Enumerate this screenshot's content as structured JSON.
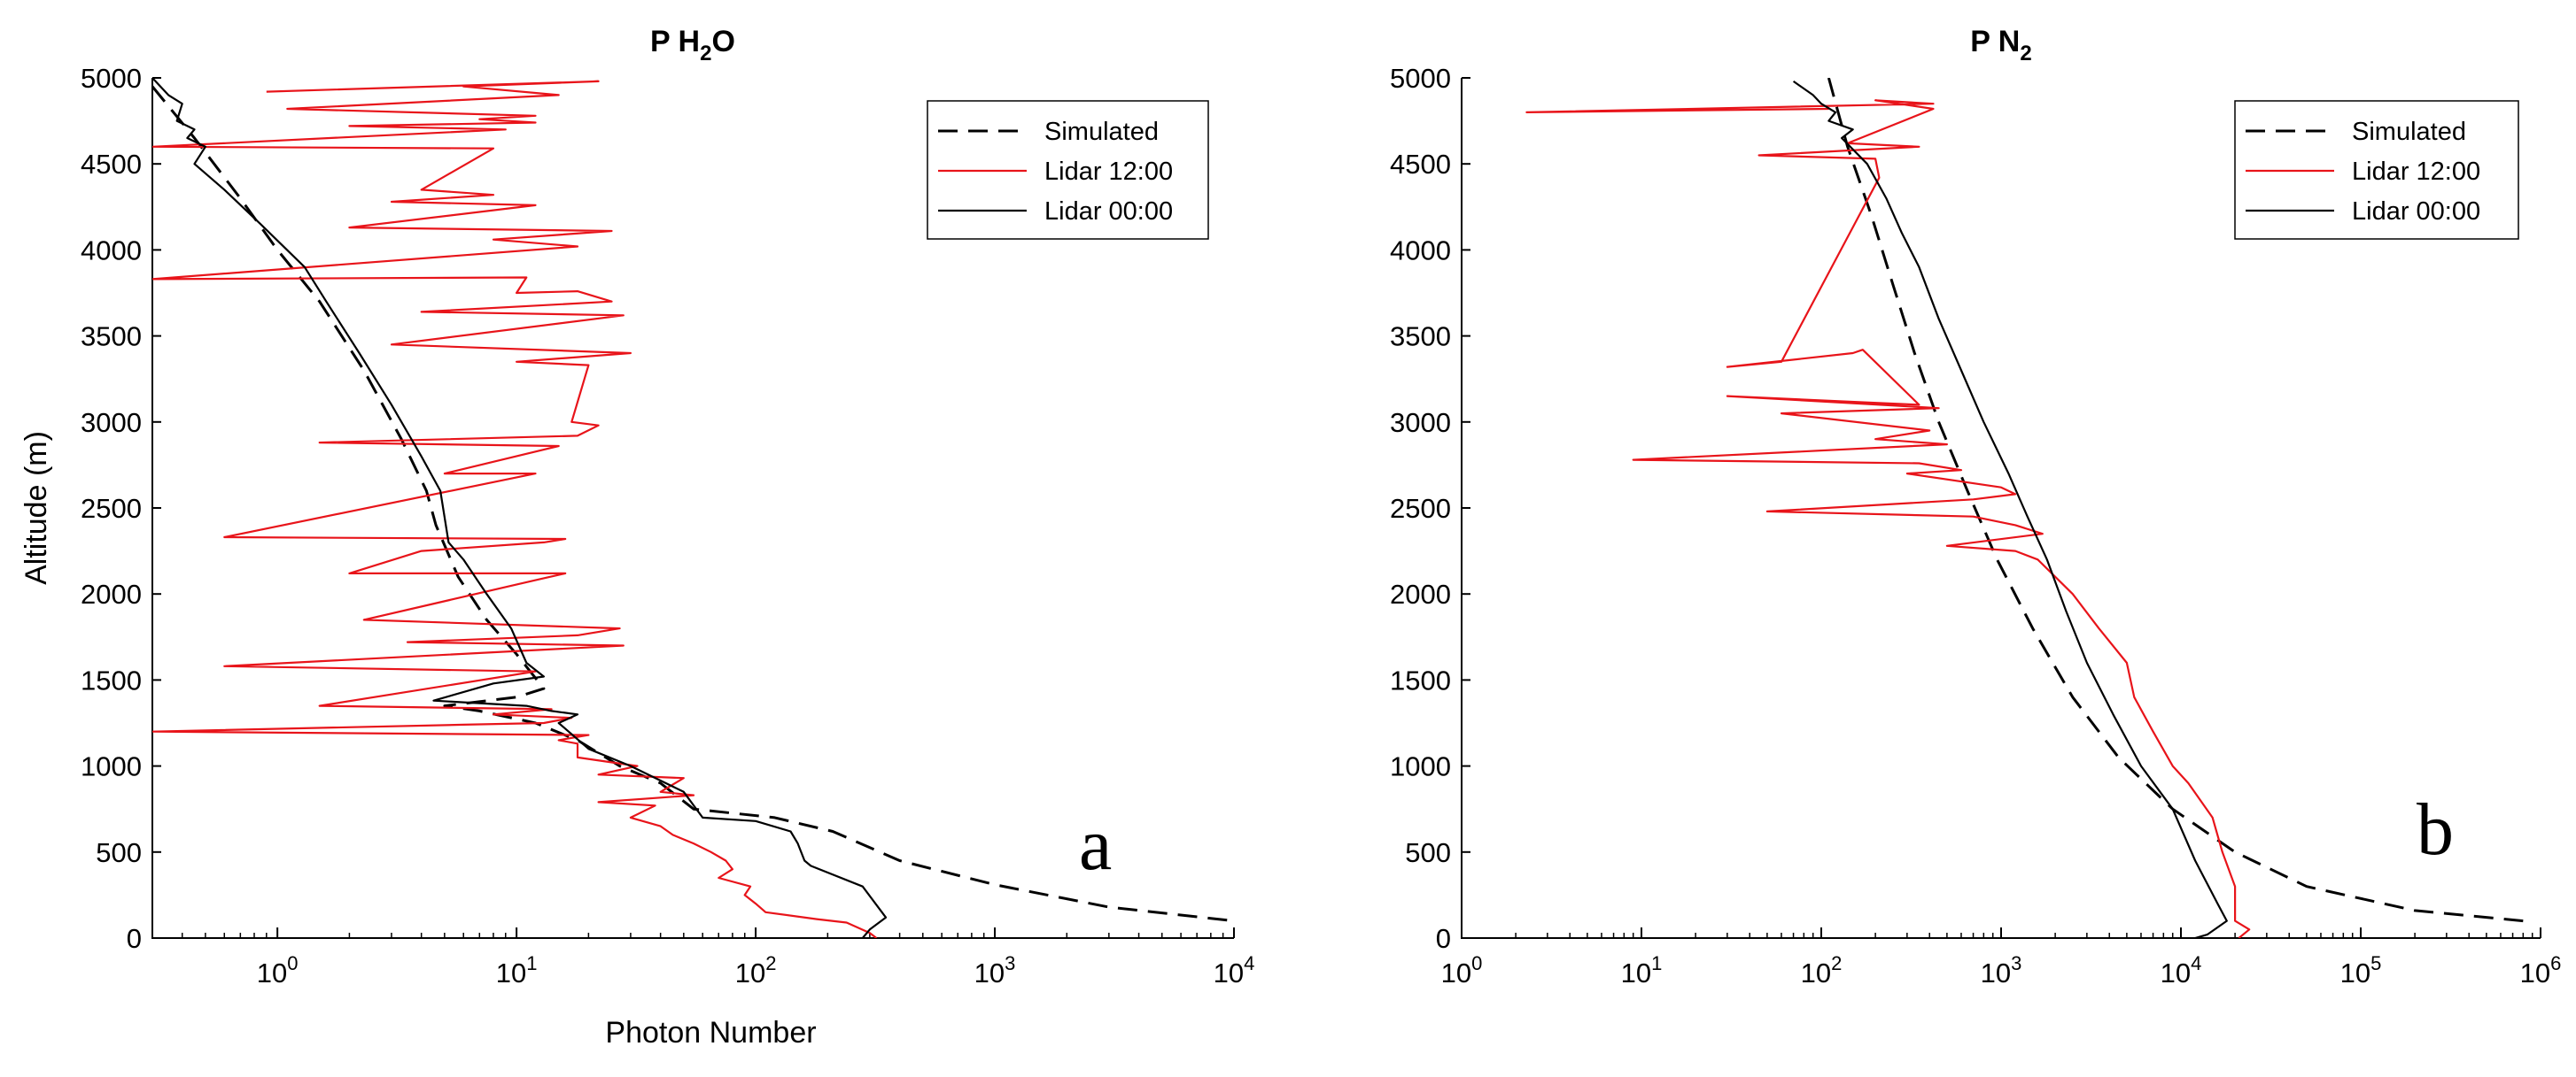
{
  "chart_data": [
    {
      "type": "line",
      "title": "P H2O",
      "title_parts": [
        "P H",
        "2",
        "O"
      ],
      "xlabel": "Photon Number",
      "ylabel": "Altitude (m)",
      "x_scale": "log",
      "xlim": [
        0.3,
        10000
      ],
      "ylim": [
        0,
        5000
      ],
      "x_ticks": [
        1,
        10,
        100,
        1000,
        10000
      ],
      "x_tick_base": "10",
      "x_tick_exponents": [
        "0",
        "1",
        "2",
        "3",
        "4"
      ],
      "y_ticks": [
        "0",
        "500",
        "1000",
        "1500",
        "2000",
        "2500",
        "3000",
        "3500",
        "4000",
        "4500",
        "5000"
      ],
      "grid": false,
      "legend": "top-right",
      "annotation": "a",
      "series": [
        {
          "name": "Simulated",
          "style": "dashed",
          "color": "#000000",
          "points": [
            [
              0.3,
              4950
            ],
            [
              0.45,
              4650
            ],
            [
              0.7,
              4300
            ],
            [
              1.0,
              4000
            ],
            [
              1.5,
              3700
            ],
            [
              2.3,
              3300
            ],
            [
              3.3,
              2900
            ],
            [
              4.2,
              2600
            ],
            [
              4.6,
              2400
            ],
            [
              5.7,
              2100
            ],
            [
              7.5,
              1850
            ],
            [
              10,
              1650
            ],
            [
              13,
              1450
            ],
            [
              10,
              1400
            ],
            [
              5,
              1350
            ],
            [
              7,
              1320
            ],
            [
              12,
              1250
            ],
            [
              18,
              1150
            ],
            [
              27,
              1000
            ],
            [
              40,
              900
            ],
            [
              55,
              750
            ],
            [
              120,
              700
            ],
            [
              210,
              620
            ],
            [
              400,
              450
            ],
            [
              1000,
              310
            ],
            [
              3000,
              180
            ],
            [
              10000,
              100
            ]
          ]
        },
        {
          "name": "Lidar 12:00",
          "style": "solid",
          "color": "#e8141a",
          "points": [
            [
              0.9,
              4920
            ],
            [
              22,
              4980
            ],
            [
              6,
              4950
            ],
            [
              15,
              4900
            ],
            [
              1.1,
              4820
            ],
            [
              12,
              4780
            ],
            [
              7,
              4760
            ],
            [
              12,
              4740
            ],
            [
              2,
              4720
            ],
            [
              9,
              4700
            ],
            [
              0.3,
              4600
            ],
            [
              8,
              4590
            ],
            [
              4,
              4350
            ],
            [
              8,
              4320
            ],
            [
              3,
              4280
            ],
            [
              12,
              4260
            ],
            [
              2,
              4130
            ],
            [
              25,
              4110
            ],
            [
              8,
              4060
            ],
            [
              18,
              4020
            ],
            [
              0.3,
              3830
            ],
            [
              11,
              3840
            ],
            [
              10,
              3750
            ],
            [
              18,
              3760
            ],
            [
              25,
              3700
            ],
            [
              4,
              3640
            ],
            [
              28,
              3620
            ],
            [
              3,
              3450
            ],
            [
              30,
              3400
            ],
            [
              10,
              3350
            ],
            [
              20,
              3330
            ],
            [
              17,
              3000
            ],
            [
              22,
              2980
            ],
            [
              18,
              2920
            ],
            [
              1.5,
              2880
            ],
            [
              15,
              2860
            ],
            [
              5,
              2700
            ],
            [
              12,
              2700
            ],
            [
              0.6,
              2330
            ],
            [
              16,
              2320
            ],
            [
              13,
              2300
            ],
            [
              4,
              2250
            ],
            [
              2,
              2120
            ],
            [
              16,
              2120
            ],
            [
              12,
              2080
            ],
            [
              2.3,
              1850
            ],
            [
              27,
              1800
            ],
            [
              18,
              1760
            ],
            [
              3.5,
              1720
            ],
            [
              28,
              1700
            ],
            [
              0.6,
              1580
            ],
            [
              12,
              1550
            ],
            [
              1.5,
              1350
            ],
            [
              14,
              1330
            ],
            [
              8,
              1300
            ],
            [
              17,
              1280
            ],
            [
              13,
              1250
            ],
            [
              6,
              1240
            ],
            [
              0.3,
              1200
            ],
            [
              20,
              1180
            ],
            [
              15,
              1150
            ],
            [
              18,
              1130
            ],
            [
              18,
              1050
            ],
            [
              32,
              1000
            ],
            [
              22,
              950
            ],
            [
              50,
              930
            ],
            [
              40,
              850
            ],
            [
              55,
              830
            ],
            [
              22,
              790
            ],
            [
              38,
              770
            ],
            [
              30,
              700
            ],
            [
              40,
              650
            ],
            [
              45,
              600
            ],
            [
              55,
              550
            ],
            [
              65,
              500
            ],
            [
              75,
              450
            ],
            [
              80,
              400
            ],
            [
              70,
              350
            ],
            [
              95,
              300
            ],
            [
              90,
              250
            ],
            [
              100,
              200
            ],
            [
              110,
              150
            ],
            [
              180,
              110
            ],
            [
              240,
              90
            ],
            [
              300,
              30
            ],
            [
              320,
              0
            ]
          ]
        },
        {
          "name": "Lidar 00:00",
          "style": "solid",
          "color": "#000000",
          "points": [
            [
              0.3,
              5000
            ],
            [
              0.35,
              4900
            ],
            [
              0.4,
              4850
            ],
            [
              0.38,
              4750
            ],
            [
              0.45,
              4700
            ],
            [
              0.42,
              4650
            ],
            [
              0.5,
              4600
            ],
            [
              0.45,
              4500
            ],
            [
              0.6,
              4350
            ],
            [
              0.85,
              4150
            ],
            [
              1.3,
              3900
            ],
            [
              1.6,
              3700
            ],
            [
              2.2,
              3400
            ],
            [
              3,
              3100
            ],
            [
              4,
              2800
            ],
            [
              4.8,
              2600
            ],
            [
              5.2,
              2300
            ],
            [
              6,
              2200
            ],
            [
              7.5,
              2000
            ],
            [
              9.5,
              1800
            ],
            [
              11,
              1600
            ],
            [
              13,
              1520
            ],
            [
              8,
              1480
            ],
            [
              4.5,
              1380
            ],
            [
              11,
              1350
            ],
            [
              14,
              1320
            ],
            [
              18,
              1300
            ],
            [
              15,
              1250
            ],
            [
              20,
              1100
            ],
            [
              30,
              1000
            ],
            [
              50,
              850
            ],
            [
              60,
              700
            ],
            [
              100,
              680
            ],
            [
              140,
              620
            ],
            [
              150,
              550
            ],
            [
              160,
              450
            ],
            [
              170,
              420
            ],
            [
              280,
              300
            ],
            [
              350,
              120
            ],
            [
              300,
              50
            ],
            [
              280,
              0
            ]
          ]
        }
      ]
    },
    {
      "type": "line",
      "title": "P N2",
      "title_parts": [
        "P N",
        "2",
        ""
      ],
      "xlabel": "",
      "ylabel": "",
      "x_scale": "log",
      "xlim": [
        1,
        1000000
      ],
      "ylim": [
        0,
        5000
      ],
      "x_ticks": [
        1,
        10,
        100,
        1000,
        10000,
        100000,
        1000000
      ],
      "x_tick_base": "10",
      "x_tick_exponents": [
        "0",
        "1",
        "2",
        "3",
        "4",
        "5",
        "6"
      ],
      "y_ticks": [
        "0",
        "500",
        "1000",
        "1500",
        "2000",
        "2500",
        "3000",
        "3500",
        "4000",
        "4500",
        "5000"
      ],
      "grid": false,
      "legend": "top-right",
      "annotation": "b",
      "series": [
        {
          "name": "Simulated",
          "style": "dashed",
          "color": "#000000",
          "points": [
            [
              110,
              5000
            ],
            [
              140,
              4600
            ],
            [
              190,
              4200
            ],
            [
              250,
              3800
            ],
            [
              330,
              3400
            ],
            [
              450,
              3000
            ],
            [
              650,
              2600
            ],
            [
              950,
              2200
            ],
            [
              1500,
              1800
            ],
            [
              2500,
              1400
            ],
            [
              4500,
              1050
            ],
            [
              9000,
              750
            ],
            [
              20000,
              500
            ],
            [
              50000,
              300
            ],
            [
              200000,
              160
            ],
            [
              800000,
              100
            ]
          ]
        },
        {
          "name": "Lidar 12:00",
          "style": "solid",
          "color": "#e8141a",
          "points": [
            [
              110,
              4820
            ],
            [
              2.3,
              4800
            ],
            [
              420,
              4850
            ],
            [
              200,
              4870
            ],
            [
              420,
              4820
            ],
            [
              140,
              4620
            ],
            [
              350,
              4600
            ],
            [
              45,
              4550
            ],
            [
              200,
              4530
            ],
            [
              210,
              4420
            ],
            [
              60,
              3350
            ],
            [
              30,
              3320
            ],
            [
              150,
              3400
            ],
            [
              170,
              3420
            ],
            [
              350,
              3100
            ],
            [
              30,
              3150
            ],
            [
              450,
              3080
            ],
            [
              60,
              3050
            ],
            [
              400,
              2950
            ],
            [
              200,
              2900
            ],
            [
              500,
              2870
            ],
            [
              9,
              2780
            ],
            [
              350,
              2760
            ],
            [
              600,
              2720
            ],
            [
              300,
              2700
            ],
            [
              1000,
              2620
            ],
            [
              1200,
              2580
            ],
            [
              700,
              2550
            ],
            [
              50,
              2480
            ],
            [
              700,
              2450
            ],
            [
              1200,
              2400
            ],
            [
              1700,
              2350
            ],
            [
              500,
              2280
            ],
            [
              1200,
              2250
            ],
            [
              1600,
              2200
            ],
            [
              2500,
              2000
            ],
            [
              3500,
              1800
            ],
            [
              5000,
              1600
            ],
            [
              5500,
              1400
            ],
            [
              7000,
              1200
            ],
            [
              9000,
              1000
            ],
            [
              11000,
              900
            ],
            [
              15000,
              700
            ],
            [
              17000,
              500
            ],
            [
              20000,
              300
            ],
            [
              20000,
              100
            ],
            [
              24000,
              50
            ],
            [
              21000,
              0
            ]
          ]
        },
        {
          "name": "Lidar 00:00",
          "style": "solid",
          "color": "#000000",
          "points": [
            [
              70,
              4980
            ],
            [
              90,
              4900
            ],
            [
              100,
              4850
            ],
            [
              120,
              4800
            ],
            [
              110,
              4750
            ],
            [
              150,
              4700
            ],
            [
              130,
              4650
            ],
            [
              180,
              4500
            ],
            [
              230,
              4300
            ],
            [
              280,
              4100
            ],
            [
              350,
              3900
            ],
            [
              450,
              3600
            ],
            [
              600,
              3300
            ],
            [
              800,
              3000
            ],
            [
              1100,
              2700
            ],
            [
              1400,
              2450
            ],
            [
              1800,
              2200
            ],
            [
              2300,
              1900
            ],
            [
              3000,
              1600
            ],
            [
              4200,
              1300
            ],
            [
              6000,
              1000
            ],
            [
              9000,
              750
            ],
            [
              12000,
              450
            ],
            [
              16000,
              200
            ],
            [
              18000,
              100
            ],
            [
              14000,
              20
            ],
            [
              12000,
              0
            ]
          ]
        }
      ]
    }
  ]
}
